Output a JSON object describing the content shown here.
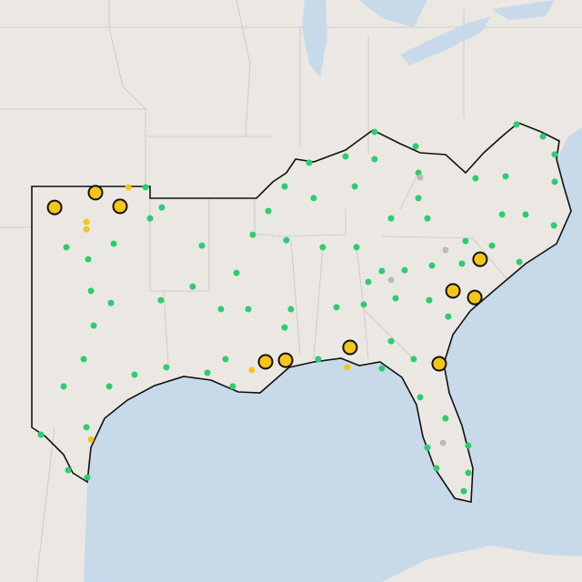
{
  "map": {
    "marker_groups": [
      {
        "color": "#2ecc71",
        "outlined": false,
        "points": [
          {
            "lon": -85.55,
            "lat": 39.0
          },
          {
            "lon": -83.46,
            "lat": 38.47
          },
          {
            "lon": -87.03,
            "lat": 38.1
          },
          {
            "lon": -88.88,
            "lat": 37.87
          },
          {
            "lon": -85.55,
            "lat": 38.0
          },
          {
            "lon": -83.32,
            "lat": 37.5
          },
          {
            "lon": -80.41,
            "lat": 37.3
          },
          {
            "lon": -78.32,
            "lat": 39.27
          },
          {
            "lon": -76.98,
            "lat": 38.83
          },
          {
            "lon": -76.38,
            "lat": 38.17
          },
          {
            "lon": -76.38,
            "lat": 37.17
          },
          {
            "lon": -78.88,
            "lat": 37.37
          },
          {
            "lon": -79.06,
            "lat": 35.97
          },
          {
            "lon": -77.86,
            "lat": 35.97
          },
          {
            "lon": -76.42,
            "lat": 35.57
          },
          {
            "lon": -78.18,
            "lat": 34.23
          },
          {
            "lon": -79.57,
            "lat": 34.83
          },
          {
            "lon": -80.92,
            "lat": 35.0
          },
          {
            "lon": -82.86,
            "lat": 35.83
          },
          {
            "lon": -84.71,
            "lat": 35.83
          },
          {
            "lon": -83.32,
            "lat": 36.57
          },
          {
            "lon": -86.56,
            "lat": 37.0
          },
          {
            "lon": -88.65,
            "lat": 36.57
          },
          {
            "lon": -90.13,
            "lat": 37.0
          },
          {
            "lon": -90.96,
            "lat": 36.1
          },
          {
            "lon": -91.75,
            "lat": 35.23
          },
          {
            "lon": -90.04,
            "lat": 35.03
          },
          {
            "lon": -88.19,
            "lat": 34.77
          },
          {
            "lon": -86.47,
            "lat": 34.77
          },
          {
            "lon": -85.18,
            "lat": 33.9
          },
          {
            "lon": -84.02,
            "lat": 33.93
          },
          {
            "lon": -85.87,
            "lat": 33.5
          },
          {
            "lon": -84.48,
            "lat": 32.9
          },
          {
            "lon": -82.63,
            "lat": 34.1
          },
          {
            "lon": -82.77,
            "lat": 32.83
          },
          {
            "lon": -81.8,
            "lat": 32.23
          },
          {
            "lon": -81.1,
            "lat": 34.17
          },
          {
            "lon": -84.71,
            "lat": 31.33
          },
          {
            "lon": -86.1,
            "lat": 32.67
          },
          {
            "lon": -87.49,
            "lat": 32.57
          },
          {
            "lon": -89.81,
            "lat": 32.5
          },
          {
            "lon": -93.37,
            "lat": 32.5
          },
          {
            "lon": -91.98,
            "lat": 32.5
          },
          {
            "lon": -92.58,
            "lat": 33.83
          },
          {
            "lon": -94.34,
            "lat": 34.83
          },
          {
            "lon": -94.81,
            "lat": 33.33
          },
          {
            "lon": -96.43,
            "lat": 32.83
          },
          {
            "lon": -96.98,
            "lat": 35.83
          },
          {
            "lon": -96.38,
            "lat": 36.23
          },
          {
            "lon": -97.21,
            "lat": 36.97
          },
          {
            "lon": -101.24,
            "lat": 34.77
          },
          {
            "lon": -98.83,
            "lat": 34.9
          },
          {
            "lon": -100.13,
            "lat": 34.33
          },
          {
            "lon": -99.99,
            "lat": 33.17
          },
          {
            "lon": -98.97,
            "lat": 32.73
          },
          {
            "lon": -99.85,
            "lat": 31.9
          },
          {
            "lon": -100.36,
            "lat": 30.67
          },
          {
            "lon": -101.38,
            "lat": 29.67
          },
          {
            "lon": -99.06,
            "lat": 29.67
          },
          {
            "lon": -97.77,
            "lat": 30.1
          },
          {
            "lon": -96.15,
            "lat": 30.37
          },
          {
            "lon": -93.14,
            "lat": 30.67
          },
          {
            "lon": -92.77,
            "lat": 29.67
          },
          {
            "lon": -90.13,
            "lat": 31.83
          },
          {
            "lon": -88.42,
            "lat": 30.67
          },
          {
            "lon": -85.18,
            "lat": 30.33
          },
          {
            "lon": -83.56,
            "lat": 30.67
          },
          {
            "lon": -83.23,
            "lat": 29.27
          },
          {
            "lon": -81.94,
            "lat": 28.5
          },
          {
            "lon": -82.86,
            "lat": 27.43
          },
          {
            "lon": -80.78,
            "lat": 27.5
          },
          {
            "lon": -82.4,
            "lat": 26.67
          },
          {
            "lon": -80.78,
            "lat": 26.5
          },
          {
            "lon": -81.01,
            "lat": 25.83
          },
          {
            "lon": -102.54,
            "lat": 27.9
          },
          {
            "lon": -101.15,
            "lat": 26.6
          },
          {
            "lon": -100.18,
            "lat": 26.33
          },
          {
            "lon": -100.22,
            "lat": 28.17
          },
          {
            "lon": -94.06,
            "lat": 30.17
          }
        ]
      },
      {
        "color": "#b8bcc0",
        "outlined": false,
        "points": [
          {
            "lon": -83.23,
            "lat": 37.33
          },
          {
            "lon": -82.07,
            "lat": 27.6
          },
          {
            "lon": -84.71,
            "lat": 33.57
          },
          {
            "lon": -81.94,
            "lat": 34.67
          }
        ]
      },
      {
        "color": "#f5c518",
        "outlined": false,
        "points": [
          {
            "lon": -98.09,
            "lat": 36.97
          },
          {
            "lon": -100.22,
            "lat": 35.7
          },
          {
            "lon": -100.22,
            "lat": 35.43
          },
          {
            "lon": -99.99,
            "lat": 27.73
          },
          {
            "lon": -86.94,
            "lat": 30.37
          },
          {
            "lon": -91.8,
            "lat": 30.27
          }
        ]
      },
      {
        "color": "#f5c518",
        "outlined": true,
        "points": [
          {
            "lon": -101.84,
            "lat": 36.23
          },
          {
            "lon": -99.76,
            "lat": 36.77
          },
          {
            "lon": -98.51,
            "lat": 36.27
          },
          {
            "lon": -91.1,
            "lat": 30.57
          },
          {
            "lon": -90.08,
            "lat": 30.63
          },
          {
            "lon": -86.8,
            "lat": 31.1
          },
          {
            "lon": -82.26,
            "lat": 30.5
          },
          {
            "lon": -80.18,
            "lat": 34.33
          },
          {
            "lon": -81.56,
            "lat": 33.17
          },
          {
            "lon": -80.45,
            "lat": 32.93
          }
        ]
      }
    ]
  }
}
